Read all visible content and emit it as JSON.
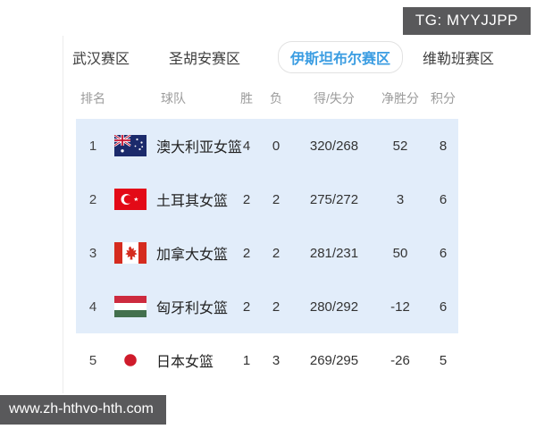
{
  "badges": {
    "tg": "TG: MYYJJPP",
    "site": "www.zh-hthvo-hth.com"
  },
  "tabs": {
    "items": [
      {
        "label": "武汉赛区",
        "selected": false
      },
      {
        "label": "圣胡安赛区",
        "selected": false
      },
      {
        "label": "伊斯坦布尔赛区",
        "selected": true
      },
      {
        "label": "维勒班赛区",
        "selected": false
      }
    ]
  },
  "standings": {
    "headers": {
      "rank": "排名",
      "team": "球队",
      "wins": "胜",
      "losses": "负",
      "score": "得/失分",
      "diff": "净胜分",
      "points": "积分"
    },
    "rows": [
      {
        "rank": "1",
        "flag_icon": "australia-flag",
        "team": "澳大利亚女篮",
        "wins": "4",
        "losses": "0",
        "score": "320/268",
        "diff": "52",
        "points": "8",
        "highlighted": true
      },
      {
        "rank": "2",
        "flag_icon": "turkey-flag",
        "team": "土耳其女篮",
        "wins": "2",
        "losses": "2",
        "score": "275/272",
        "diff": "3",
        "points": "6",
        "highlighted": true
      },
      {
        "rank": "3",
        "flag_icon": "canada-flag",
        "team": "加拿大女篮",
        "wins": "2",
        "losses": "2",
        "score": "281/231",
        "diff": "50",
        "points": "6",
        "highlighted": true
      },
      {
        "rank": "4",
        "flag_icon": "hungary-flag",
        "team": "匈牙利女篮",
        "wins": "2",
        "losses": "2",
        "score": "280/292",
        "diff": "-12",
        "points": "6",
        "highlighted": true
      },
      {
        "rank": "5",
        "flag_icon": "japan-flag",
        "team": "日本女篮",
        "wins": "1",
        "losses": "3",
        "score": "269/295",
        "diff": "-26",
        "points": "5",
        "highlighted": false
      }
    ]
  },
  "colors": {
    "accent_blue": "#3b9de2",
    "highlight_row_bg": "#e2edfa",
    "badge_bg": "#59595b",
    "header_text": "#9b9b9b"
  }
}
